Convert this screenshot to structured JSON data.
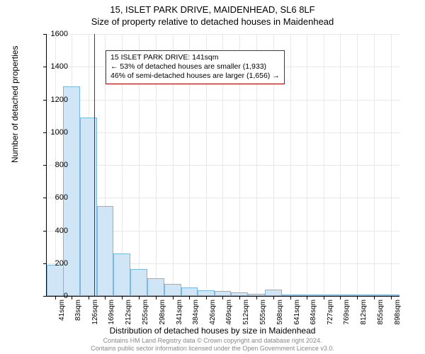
{
  "title_line1": "15, ISLET PARK DRIVE, MAIDENHEAD, SL6 8LF",
  "title_line2": "Size of property relative to detached houses in Maidenhead",
  "ylabel": "Number of detached properties",
  "xlabel": "Distribution of detached houses by size in Maidenhead",
  "footer_line1": "Contains HM Land Registry data © Crown copyright and database right 2024.",
  "footer_line2": "Contains public sector information licensed under the Open Government Licence v3.0.",
  "chart": {
    "type": "histogram",
    "ylim": [
      0,
      1600
    ],
    "ytick_step": 200,
    "yticks": [
      0,
      200,
      400,
      600,
      800,
      1000,
      1200,
      1400,
      1600
    ],
    "xticks": [
      41,
      83,
      126,
      169,
      212,
      255,
      298,
      341,
      384,
      426,
      469,
      512,
      555,
      598,
      641,
      684,
      727,
      769,
      812,
      855,
      898
    ],
    "xtick_suffix": "sqm",
    "x_min": 20,
    "x_max": 920,
    "bar_width_sqm": 43,
    "bars": [
      {
        "x": 41,
        "y": 190
      },
      {
        "x": 83,
        "y": 1280
      },
      {
        "x": 126,
        "y": 1090
      },
      {
        "x": 169,
        "y": 550
      },
      {
        "x": 212,
        "y": 260
      },
      {
        "x": 255,
        "y": 165
      },
      {
        "x": 298,
        "y": 110
      },
      {
        "x": 341,
        "y": 75
      },
      {
        "x": 384,
        "y": 50
      },
      {
        "x": 426,
        "y": 35
      },
      {
        "x": 469,
        "y": 30
      },
      {
        "x": 512,
        "y": 20
      },
      {
        "x": 555,
        "y": 12
      },
      {
        "x": 598,
        "y": 38
      },
      {
        "x": 641,
        "y": 5
      },
      {
        "x": 684,
        "y": 4
      },
      {
        "x": 727,
        "y": 3
      },
      {
        "x": 769,
        "y": 2
      },
      {
        "x": 812,
        "y": 2
      },
      {
        "x": 855,
        "y": 1
      },
      {
        "x": 898,
        "y": 1
      }
    ],
    "bar_fill": "#d0e5f5",
    "bar_border": "#7ab8e0",
    "grid_color": "#e8e8e8",
    "reference_line": {
      "x": 141,
      "color": "#cc0000"
    },
    "annotation": {
      "line1": "15 ISLET PARK DRIVE: 141sqm",
      "line2": "← 53% of detached houses are smaller (1,933)",
      "line3": "46% of semi-detached houses are larger (1,656) →",
      "border_color": "#cc0000",
      "x_sqm": 170,
      "y_val": 1500
    }
  }
}
